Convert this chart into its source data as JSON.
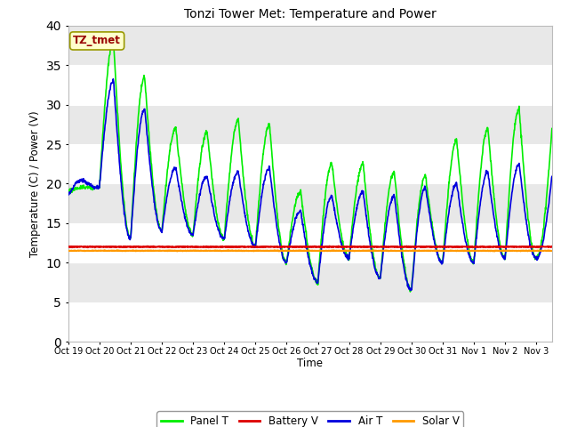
{
  "title": "Tonzi Tower Met: Temperature and Power",
  "xlabel": "Time",
  "ylabel": "Temperature (C) / Power (V)",
  "ylim": [
    0,
    40
  ],
  "background_color": "#f0f0f0",
  "axes_bg_color": "#e8e8e8",
  "grid_color": "#d0d0d0",
  "tick_labels": [
    "Oct 19",
    "Oct 20",
    "Oct 21",
    "Oct 22",
    "Oct 23",
    "Oct 24",
    "Oct 25",
    "Oct 26",
    "Oct 27",
    "Oct 28",
    "Oct 29",
    "Oct 30",
    "Oct 31",
    "Nov 1",
    "Nov 2",
    "Nov 3"
  ],
  "legend_label": "TZ_tmet",
  "legend_box_facecolor": "#ffffcc",
  "legend_box_edgecolor": "#999900",
  "legend_text_color": "#990000",
  "series": {
    "panel_T": {
      "color": "#00ee00",
      "label": "Panel T",
      "lw": 1.2
    },
    "battery_V": {
      "color": "#dd0000",
      "label": "Battery V",
      "lw": 1.5
    },
    "air_T": {
      "color": "#0000dd",
      "label": "Air T",
      "lw": 1.2
    },
    "solar_V": {
      "color": "#ff9900",
      "label": "Solar V",
      "lw": 1.5
    }
  },
  "battery_val": 12.0,
  "solar_val": 11.5,
  "panel_peaks": [
    19.5,
    38.0,
    33.5,
    27.0,
    26.5,
    28.0,
    27.5,
    19.0,
    22.5,
    22.5,
    21.5,
    21.0,
    25.5,
    27.0,
    29.5,
    30.5
  ],
  "panel_mins": [
    19.0,
    19.5,
    13.0,
    14.0,
    13.5,
    13.0,
    12.0,
    10.0,
    7.5,
    10.5,
    8.0,
    6.5,
    10.0,
    10.0,
    10.5,
    10.5
  ],
  "air_peaks": [
    20.5,
    33.0,
    29.5,
    22.0,
    21.0,
    21.5,
    22.0,
    16.5,
    18.5,
    19.0,
    18.5,
    19.5,
    20.0,
    21.5,
    22.5,
    23.5
  ],
  "air_mins": [
    18.5,
    19.5,
    13.0,
    14.0,
    13.5,
    13.0,
    12.0,
    10.0,
    7.5,
    10.5,
    8.0,
    6.5,
    10.0,
    10.0,
    10.5,
    10.5
  ]
}
